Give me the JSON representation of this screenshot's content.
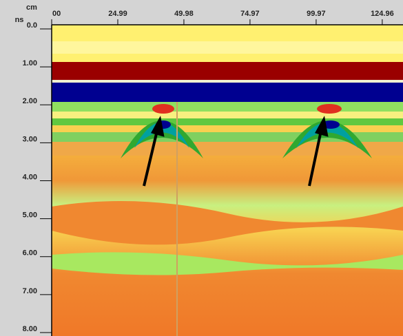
{
  "chart_data": {
    "type": "radargram",
    "x_label": "cm",
    "y_label": "ns",
    "xlim": [
      0,
      132.8
    ],
    "ylim": [
      0,
      8
    ],
    "xticks": [
      {
        "value": 0,
        "label": "00"
      },
      24.99,
      49.98,
      74.97,
      99.97,
      124.96
    ],
    "yticks": [
      {
        "value": 0,
        "label": "0.0"
      },
      {
        "value": 1,
        "label": "1.00"
      },
      {
        "value": 2,
        "label": "2.00"
      },
      {
        "value": 3,
        "label": "3.00"
      },
      {
        "value": 4,
        "label": "4.00"
      },
      {
        "value": 5,
        "label": "5.00"
      },
      {
        "value": 6,
        "label": "6.00"
      },
      {
        "value": 7,
        "label": "7.00"
      },
      {
        "value": 8,
        "label": "8.00"
      }
    ]
  }
}
